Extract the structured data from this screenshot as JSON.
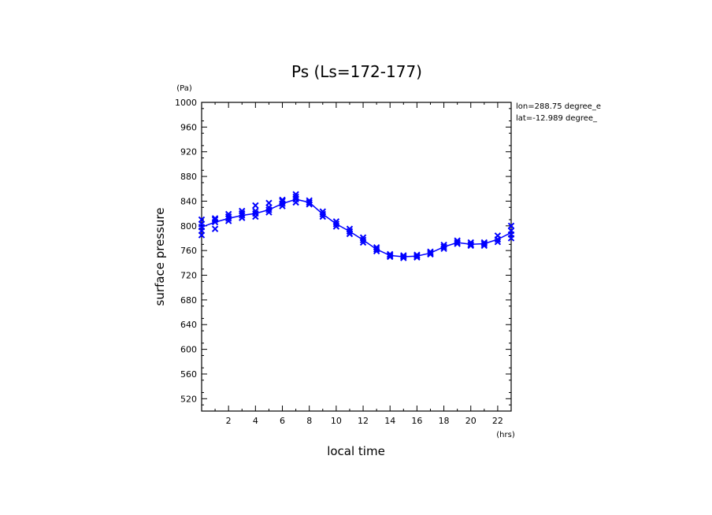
{
  "chart_data": {
    "type": "scatter",
    "title": "Ps (Ls=172-177)",
    "xlabel": "local time",
    "x_unit": "(hrs)",
    "ylabel": "surface pressure",
    "y_unit": "(Pa)",
    "xlim": [
      0,
      23
    ],
    "ylim": [
      500,
      1000
    ],
    "x_ticks": [
      2,
      4,
      6,
      8,
      10,
      12,
      14,
      16,
      18,
      20,
      22
    ],
    "y_ticks": [
      520,
      560,
      600,
      640,
      680,
      720,
      760,
      800,
      840,
      880,
      920,
      960,
      1000
    ],
    "annotations": [
      "lon=288.75 degree_e",
      "lat=-12.989 degree_"
    ],
    "color": "#0000ff",
    "mean_line": {
      "x": [
        0,
        1,
        2,
        3,
        4,
        5,
        6,
        7,
        8,
        9,
        10,
        11,
        12,
        13,
        14,
        15,
        16,
        17,
        18,
        19,
        20,
        21,
        22,
        23
      ],
      "y": [
        798,
        806,
        812,
        817,
        820,
        826,
        836,
        843,
        838,
        819,
        803,
        791,
        777,
        762,
        752,
        750,
        751,
        756,
        766,
        773,
        770,
        771,
        778,
        789
      ]
    },
    "samples": [
      {
        "x": 0,
        "y": [
          785,
          792,
          798,
          803,
          810
        ]
      },
      {
        "x": 1,
        "y": [
          795,
          806,
          810,
          812
        ]
      },
      {
        "x": 2,
        "y": [
          808,
          812,
          815,
          819
        ]
      },
      {
        "x": 3,
        "y": [
          813,
          817,
          820,
          824
        ]
      },
      {
        "x": 4,
        "y": [
          815,
          820,
          824,
          833
        ]
      },
      {
        "x": 5,
        "y": [
          822,
          826,
          830,
          837
        ]
      },
      {
        "x": 6,
        "y": [
          832,
          836,
          840,
          842
        ]
      },
      {
        "x": 7,
        "y": [
          838,
          843,
          847,
          851
        ]
      },
      {
        "x": 8,
        "y": [
          835,
          838,
          841
        ]
      },
      {
        "x": 9,
        "y": [
          815,
          819,
          823
        ]
      },
      {
        "x": 10,
        "y": [
          799,
          803,
          807
        ]
      },
      {
        "x": 11,
        "y": [
          787,
          791,
          795
        ]
      },
      {
        "x": 12,
        "y": [
          773,
          777,
          781
        ]
      },
      {
        "x": 13,
        "y": [
          759,
          762,
          765
        ]
      },
      {
        "x": 14,
        "y": [
          750,
          752,
          754
        ]
      },
      {
        "x": 15,
        "y": [
          748,
          750,
          752
        ]
      },
      {
        "x": 16,
        "y": [
          749,
          751,
          753
        ]
      },
      {
        "x": 17,
        "y": [
          754,
          756,
          758
        ]
      },
      {
        "x": 18,
        "y": [
          763,
          766,
          769
        ]
      },
      {
        "x": 19,
        "y": [
          771,
          773,
          776
        ]
      },
      {
        "x": 20,
        "y": [
          768,
          770,
          773
        ]
      },
      {
        "x": 21,
        "y": [
          768,
          771,
          773
        ]
      },
      {
        "x": 22,
        "y": [
          774,
          778,
          784
        ]
      },
      {
        "x": 23,
        "y": [
          780,
          786,
          792,
          800
        ]
      }
    ]
  }
}
